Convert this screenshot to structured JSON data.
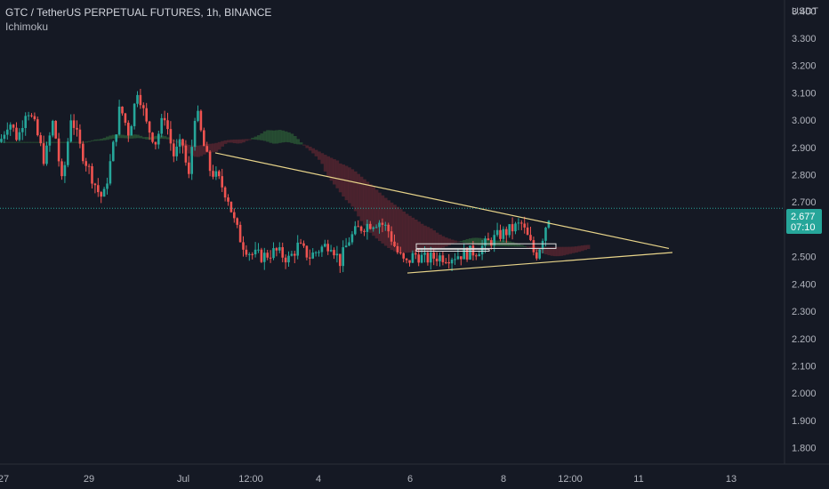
{
  "header": {
    "title": "GTC / TetherUS PERPETUAL FUTURES, 1h, BINANCE",
    "indicator": "Ichimoku"
  },
  "colors": {
    "background": "#151924",
    "grid": "#1f2331",
    "up": "#26a69a",
    "down": "#ef5350",
    "cloud_bull": "#2b5a36",
    "cloud_bear": "#5a2530",
    "trendline": "#e8d48a",
    "axis_text": "#b2b5be",
    "price_badge": "#26a69a"
  },
  "chart_data": {
    "type": "candlestick",
    "symbol": "GTC / TetherUS PERPETUAL FUTURES",
    "interval": "1h",
    "exchange": "BINANCE",
    "indicator": "Ichimoku",
    "y_unit": "USDT",
    "ylim": [
      1.74,
      3.44
    ],
    "y_ticks": [
      "3.400",
      "3.300",
      "3.200",
      "3.100",
      "3.000",
      "2.900",
      "2.800",
      "2.700",
      "2.600",
      "2.500",
      "2.400",
      "2.300",
      "2.200",
      "2.100",
      "2.000",
      "1.900",
      "1.800"
    ],
    "x_ticks": [
      "27",
      "29",
      "Jul",
      "12:00",
      "4",
      "6",
      "8",
      "12:00",
      "11",
      "13"
    ],
    "last_price": "2.677",
    "countdown": "07:10",
    "grid": false,
    "price_path": [
      [
        0,
        2.92
      ],
      [
        10,
        3.0
      ],
      [
        20,
        2.93
      ],
      [
        30,
        3.05
      ],
      [
        40,
        2.97
      ],
      [
        50,
        2.85
      ],
      [
        60,
        3.0
      ],
      [
        70,
        2.76
      ],
      [
        80,
        3.02
      ],
      [
        90,
        2.9
      ],
      [
        100,
        2.82
      ],
      [
        110,
        2.74
      ],
      [
        116,
        2.71
      ],
      [
        125,
        2.86
      ],
      [
        135,
        3.05
      ],
      [
        145,
        2.95
      ],
      [
        155,
        3.12
      ],
      [
        165,
        2.98
      ],
      [
        175,
        2.92
      ],
      [
        185,
        3.02
      ],
      [
        195,
        2.87
      ],
      [
        205,
        2.92
      ],
      [
        212,
        2.78
      ],
      [
        220,
        3.05
      ],
      [
        228,
        2.92
      ],
      [
        236,
        2.82
      ],
      [
        246,
        2.78
      ],
      [
        256,
        2.72
      ],
      [
        264,
        2.62
      ],
      [
        272,
        2.55
      ],
      [
        282,
        2.51
      ],
      [
        295,
        2.5
      ],
      [
        310,
        2.52
      ],
      [
        325,
        2.49
      ],
      [
        335,
        2.54
      ],
      [
        348,
        2.5
      ],
      [
        360,
        2.53
      ],
      [
        372,
        2.55
      ],
      [
        382,
        2.48
      ],
      [
        392,
        2.56
      ],
      [
        402,
        2.6
      ],
      [
        414,
        2.62
      ],
      [
        426,
        2.63
      ],
      [
        436,
        2.6
      ],
      [
        446,
        2.52
      ],
      [
        456,
        2.47
      ],
      [
        466,
        2.51
      ],
      [
        478,
        2.49
      ],
      [
        492,
        2.5
      ],
      [
        506,
        2.5
      ],
      [
        520,
        2.51
      ],
      [
        535,
        2.52
      ],
      [
        548,
        2.55
      ],
      [
        562,
        2.58
      ],
      [
        575,
        2.6
      ],
      [
        586,
        2.62
      ],
      [
        596,
        2.55
      ],
      [
        602,
        2.5
      ],
      [
        608,
        2.55
      ],
      [
        614,
        2.62
      ],
      [
        620,
        2.677
      ]
    ],
    "annotations": [
      {
        "type": "trendline",
        "from": [
          242,
          2.88
        ],
        "to": [
          752,
          2.53
        ]
      },
      {
        "type": "trendline",
        "from": [
          458,
          2.44
        ],
        "to": [
          756,
          2.515
        ]
      },
      {
        "type": "rectangle",
        "x": [
          468,
          625
        ],
        "y": [
          2.53,
          2.547
        ]
      },
      {
        "type": "rectangle",
        "x": [
          468,
          550
        ],
        "y": [
          2.52,
          2.527
        ]
      }
    ]
  }
}
